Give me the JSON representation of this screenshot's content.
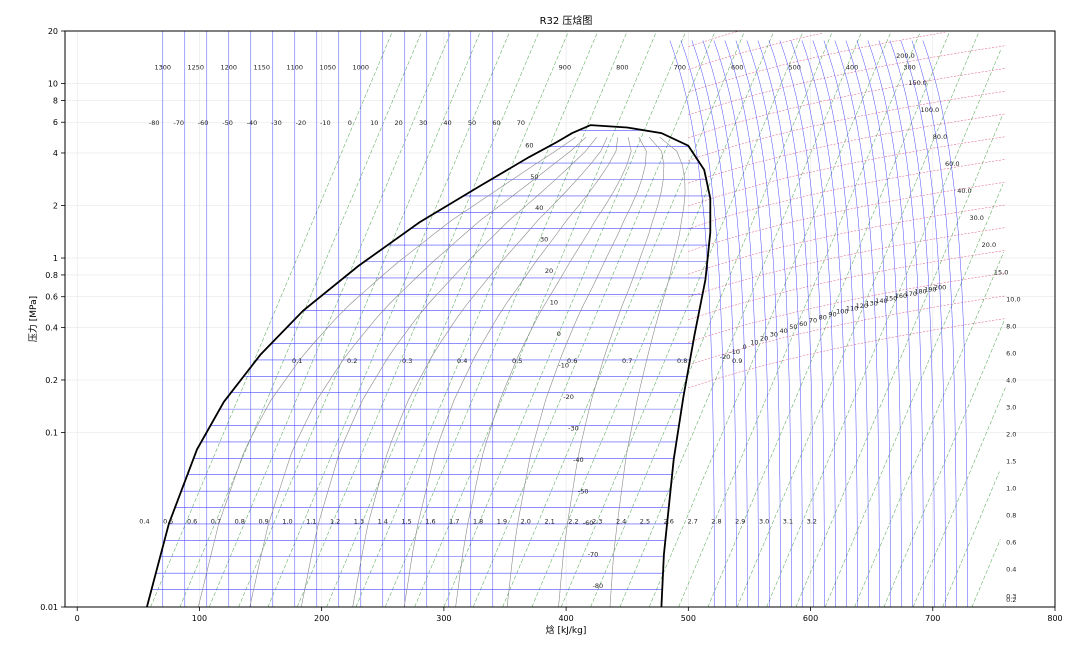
{
  "chart_data": {
    "type": "line",
    "title": "R32 压焓图",
    "xlabel": "焓 [kJ/kg]",
    "ylabel": "压力 [MPa]",
    "x_scale": "linear",
    "y_scale": "log",
    "xlim": [
      -10,
      800
    ],
    "ylim": [
      0.01,
      20
    ],
    "x_ticks": [
      "0",
      "100",
      "200",
      "300",
      "400",
      "500",
      "600",
      "700",
      "800"
    ],
    "y_ticks": [
      "0.01",
      "0.1",
      "0.2",
      "0.4",
      "0.6",
      "0.8",
      "1",
      "2",
      "4",
      "6",
      "8",
      "10",
      "20"
    ],
    "grid": true,
    "colors": {
      "saturation": "#000000",
      "isotherm": "#4b4bff",
      "isochore": "#e0507a",
      "isentrope": "#3c9a3c",
      "quality": "#8a8a8a"
    },
    "saturation_dome": {
      "liquid": [
        [
          57,
          0.01
        ],
        [
          75,
          0.03
        ],
        [
          98,
          0.08
        ],
        [
          120,
          0.15
        ],
        [
          150,
          0.28
        ],
        [
          185,
          0.5
        ],
        [
          230,
          0.9
        ],
        [
          280,
          1.6
        ],
        [
          330,
          2.6
        ],
        [
          370,
          3.8
        ],
        [
          392,
          4.6
        ],
        [
          405,
          5.2
        ],
        [
          420,
          5.78
        ]
      ],
      "vapor": [
        [
          420,
          5.78
        ],
        [
          450,
          5.6
        ],
        [
          478,
          5.2
        ],
        [
          500,
          4.4
        ],
        [
          513,
          3.2
        ],
        [
          518,
          2.2
        ],
        [
          518,
          1.4
        ],
        [
          514,
          0.75
        ],
        [
          505,
          0.36
        ],
        [
          496,
          0.16
        ],
        [
          488,
          0.07
        ],
        [
          480,
          0.02
        ],
        [
          478,
          0.01
        ]
      ]
    },
    "isotherm_labels_two_phase": [
      "60",
      "50",
      "40",
      "30",
      "20",
      "10",
      "0",
      "-10",
      "-20",
      "-30",
      "-40",
      "-50",
      "-60",
      "-70",
      "-80"
    ],
    "isotherm_labels_liquid_row": [
      "-80",
      "-70",
      "-60",
      "-50",
      "-40",
      "-30",
      "-20",
      "-10",
      "0",
      "10",
      "20",
      "30",
      "40",
      "50",
      "60",
      "70"
    ],
    "isotherm_labels_vapor": [
      "-20",
      "-10",
      "0",
      "10",
      "20",
      "30",
      "40",
      "50",
      "60",
      "70",
      "80",
      "90",
      "100",
      "110",
      "120",
      "130",
      "140",
      "150",
      "160",
      "170",
      "180",
      "190",
      "200"
    ],
    "quality_labels": [
      "0.1",
      "0.2",
      "0.3",
      "0.4",
      "0.5",
      "0.6",
      "0.7",
      "0.8",
      "0.9"
    ],
    "density_labels_top": [
      "1300",
      "1250",
      "1200",
      "1150",
      "1100",
      "1050",
      "1000",
      "900",
      "800",
      "700",
      "600",
      "500",
      "400",
      "300"
    ],
    "density_labels_right": [
      "200.0",
      "150.0",
      "100.0",
      "80.0",
      "60.0",
      "40.0",
      "30.0",
      "20.0",
      "15.0",
      "10.0",
      "8.0",
      "6.0",
      "4.0",
      "3.0",
      "2.0",
      "1.5",
      "1.0",
      "0.8",
      "0.6",
      "0.4",
      "0.3",
      "0.2"
    ],
    "entropy_labels": [
      "0.4",
      "0.5",
      "0.6",
      "0.7",
      "0.8",
      "0.9",
      "1.0",
      "1.1",
      "1.2",
      "1.3",
      "1.4",
      "1.5",
      "1.6",
      "1.7",
      "1.8",
      "1.9",
      "2.0",
      "2.1",
      "2.2",
      "2.3",
      "2.4",
      "2.5",
      "2.6",
      "2.7",
      "2.8",
      "2.9",
      "3.0",
      "3.1",
      "3.2"
    ]
  }
}
